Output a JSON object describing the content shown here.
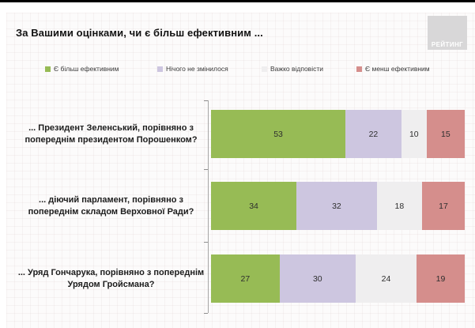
{
  "page": {
    "title": "За Вашими оцінками, чи є більш ефективним ...",
    "logo_text": "РЕЙТИНГ"
  },
  "legend": [
    {
      "label": "Є більш ефективним",
      "color": "#97bb55"
    },
    {
      "label": "Нічого не змінилося",
      "color": "#cdc6e0"
    },
    {
      "label": "Важко відповісти",
      "color": "#efeeef"
    },
    {
      "label": "Є менш ефективним",
      "color": "#d58e8c"
    }
  ],
  "chart_data": {
    "type": "bar",
    "orientation": "horizontal",
    "stacked": true,
    "units": "percent",
    "title": "За Вашими оцінками, чи є більш ефективним ...",
    "xlim": [
      0,
      100
    ],
    "grid": false,
    "legend_position": "top",
    "data_labels": true,
    "categories": [
      "... Президент Зеленський, порівняно з попереднім президентом Порошенком?",
      "... діючий парламент, порівняно з попереднім складом Верховної Ради?",
      "... Уряд Гончарука, порівняно з попереднім Урядом Гройсмана?"
    ],
    "series": [
      {
        "name": "Є більш ефективним",
        "color": "#97bb55",
        "values": [
          53,
          34,
          27
        ]
      },
      {
        "name": "Нічого не змінилося",
        "color": "#cdc6e0",
        "values": [
          22,
          32,
          30
        ]
      },
      {
        "name": "Важко відповісти",
        "color": "#efeeef",
        "values": [
          10,
          18,
          24
        ]
      },
      {
        "name": "Є менш ефективним",
        "color": "#d58e8c",
        "values": [
          15,
          17,
          19
        ]
      }
    ]
  }
}
